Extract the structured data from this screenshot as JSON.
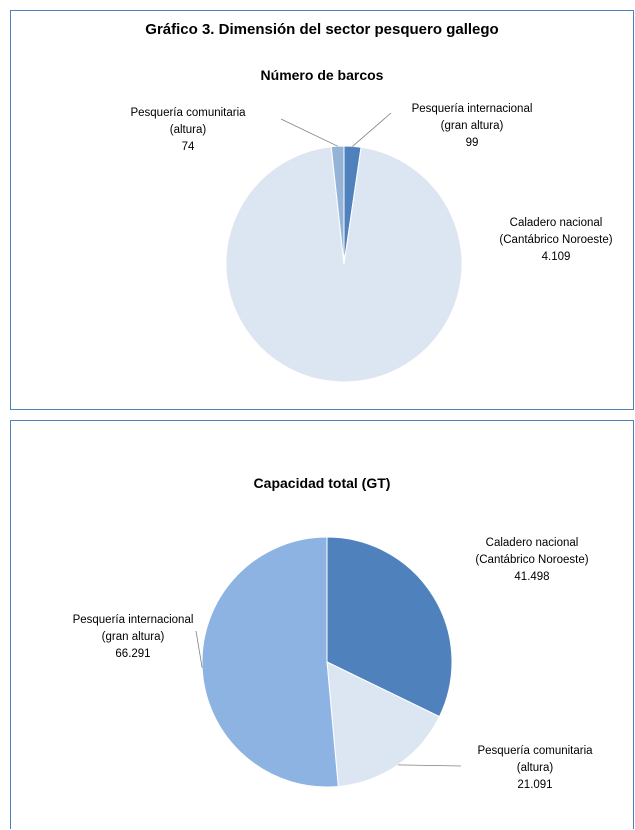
{
  "main_title": "Gráfico 3. Dimensión del sector pesquero gallego",
  "colors": {
    "border": "#4f81bd",
    "caladero": "#dce6f2",
    "comunitaria": "#95b3d7",
    "internacional": "#4f81bd",
    "cap_caladero": "#4f81bd",
    "cap_comunitaria": "#dce6f2",
    "cap_internacional": "#8db3e2",
    "leader": "#808080"
  },
  "chart_data": [
    {
      "type": "pie",
      "title": "Número de barcos",
      "slices": [
        {
          "name": [
            "Caladero nacional",
            "(Cantábrico Noroeste)"
          ],
          "value": 4109,
          "label": "4.109"
        },
        {
          "name": [
            "Pesquería comunitaria",
            "(altura)"
          ],
          "value": 74,
          "label": "74"
        },
        {
          "name": [
            "Pesquería internacional",
            "(gran altura)"
          ],
          "value": 99,
          "label": "99"
        }
      ],
      "start": "top",
      "direction": "clockwise",
      "order": [
        2,
        0,
        1
      ]
    },
    {
      "type": "pie",
      "title": "Capacidad total (GT)",
      "slices": [
        {
          "name": [
            "Caladero nacional",
            "(Cantábrico Noroeste)"
          ],
          "value": 41498,
          "label": "41.498"
        },
        {
          "name": [
            "Pesquería comunitaria",
            "(altura)"
          ],
          "value": 21091,
          "label": "21.091"
        },
        {
          "name": [
            "Pesquería internacional",
            "(gran altura)"
          ],
          "value": 66291,
          "label": "66.291"
        }
      ],
      "start": "top",
      "direction": "clockwise",
      "order": [
        0,
        1,
        2
      ]
    }
  ]
}
